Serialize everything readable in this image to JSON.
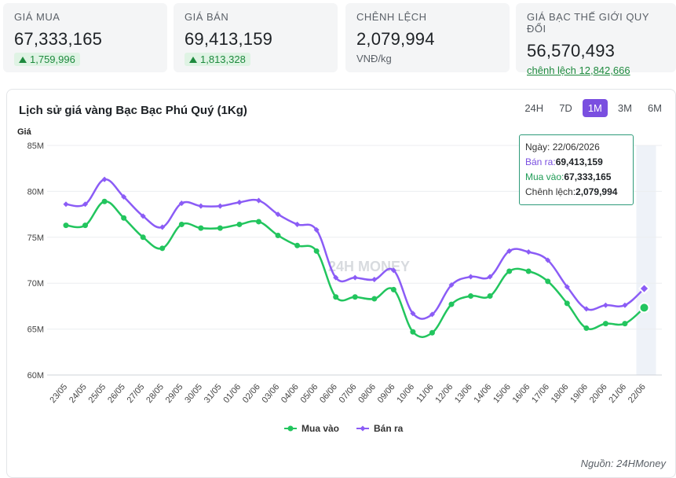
{
  "stats": [
    {
      "label": "GIÁ MUA",
      "value": "67,333,165",
      "change": "1,759,996"
    },
    {
      "label": "GIÁ BÁN",
      "value": "69,413,159",
      "change": "1,813,328"
    },
    {
      "label": "CHÊNH LỆCH",
      "value": "2,079,994",
      "unit": "VNĐ/kg"
    },
    {
      "label": "GIÁ BẠC THẾ GIỚI QUY ĐỔI",
      "value": "56,570,493",
      "link": "chênh lệch 12,842,666"
    }
  ],
  "chart_title": "Lịch sử giá vàng Bạc Bạc Phú Quý (1Kg)",
  "ranges": [
    "24H",
    "7D",
    "1M",
    "3M",
    "6M"
  ],
  "active_range": "1M",
  "source": "Nguồn: 24HMoney",
  "colors": {
    "mua": "#22c55e",
    "ban": "#8b5cf6",
    "accent": "#7a4fe0"
  },
  "chart_data": {
    "type": "line",
    "ylabel": "Giá",
    "ylim": [
      60,
      85
    ],
    "yticks": [
      "60M",
      "65M",
      "70M",
      "75M",
      "80M",
      "85M"
    ],
    "categories": [
      "23/05",
      "24/05",
      "25/05",
      "26/05",
      "27/05",
      "28/05",
      "29/05",
      "30/05",
      "31/05",
      "01/06",
      "02/06",
      "03/06",
      "04/06",
      "05/06",
      "06/06",
      "07/06",
      "08/06",
      "09/06",
      "10/06",
      "11/06",
      "12/06",
      "13/06",
      "14/06",
      "15/06",
      "16/06",
      "17/06",
      "18/06",
      "19/06",
      "20/06",
      "21/06",
      "22/06"
    ],
    "series": [
      {
        "name": "Mua vào",
        "values": [
          76.3,
          76.3,
          78.9,
          77.1,
          75.0,
          73.8,
          76.4,
          76.0,
          76.0,
          76.4,
          76.7,
          75.2,
          74.1,
          73.5,
          68.5,
          68.5,
          68.3,
          69.3,
          64.7,
          64.6,
          67.7,
          68.6,
          68.6,
          71.3,
          71.3,
          70.2,
          67.8,
          65.1,
          65.6,
          65.6,
          67.33
        ]
      },
      {
        "name": "Bán ra",
        "values": [
          78.6,
          78.6,
          81.3,
          79.4,
          77.3,
          76.1,
          78.7,
          78.4,
          78.4,
          78.8,
          79.0,
          77.5,
          76.4,
          75.8,
          70.6,
          70.6,
          70.4,
          71.4,
          66.7,
          66.6,
          69.8,
          70.7,
          70.7,
          73.5,
          73.4,
          72.5,
          69.6,
          67.2,
          67.6,
          67.6,
          69.41
        ]
      }
    ],
    "grid": true,
    "legend": "bottom",
    "highlight_category": "22/06"
  },
  "tooltip": {
    "date_label": "Ngày: ",
    "date": "22/06/2026",
    "ban_label": "Bán ra:",
    "ban": "69,413,159",
    "mua_label": "Mua vào:",
    "mua": "67,333,165",
    "diff_label": "Chênh lệch:",
    "diff": "2,079,994"
  },
  "watermark": "24H MONEY"
}
